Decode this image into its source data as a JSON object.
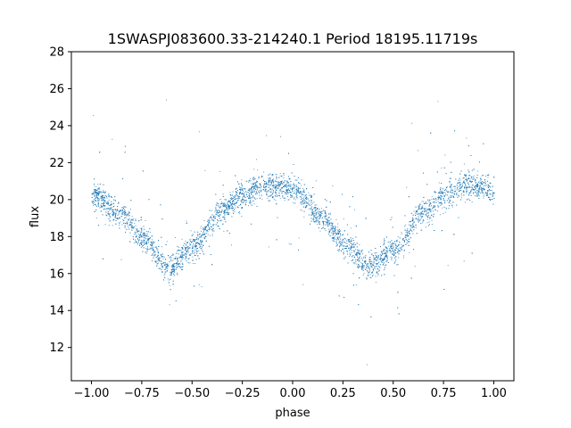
{
  "chart_data": {
    "type": "scatter",
    "title": "1SWASPJ083600.33-214240.1 Period 18195.11719s",
    "xlabel": "phase",
    "ylabel": "flux",
    "xlim": [
      -1.1,
      1.1
    ],
    "ylim": [
      10.2,
      28
    ],
    "x_ticks": [
      -1.0,
      -0.75,
      -0.5,
      -0.25,
      0.0,
      0.25,
      0.5,
      0.75,
      1.0
    ],
    "x_tick_labels": [
      "−1.00",
      "−0.75",
      "−0.50",
      "−0.25",
      "0.00",
      "0.25",
      "0.50",
      "0.75",
      "1.00"
    ],
    "y_ticks": [
      12,
      14,
      16,
      18,
      20,
      22,
      24,
      26,
      28
    ],
    "y_tick_labels": [
      "12",
      "14",
      "16",
      "18",
      "20",
      "22",
      "24",
      "26",
      "28"
    ],
    "grid": false,
    "point_color": "#1f77b4",
    "model_curve": {
      "description_free": true,
      "phase": [
        -1.0,
        -0.85,
        -0.75,
        -0.62,
        -0.5,
        -0.35,
        -0.25,
        -0.12,
        0.0,
        0.15,
        0.25,
        0.38,
        0.5,
        0.65,
        0.75,
        0.88,
        1.0
      ],
      "flux": [
        20.3,
        19.2,
        17.9,
        16.3,
        17.4,
        19.4,
        20.3,
        20.8,
        20.6,
        19.0,
        17.7,
        16.4,
        17.3,
        19.3,
        20.2,
        20.8,
        20.5
      ],
      "scatter_sd": 0.35
    }
  }
}
